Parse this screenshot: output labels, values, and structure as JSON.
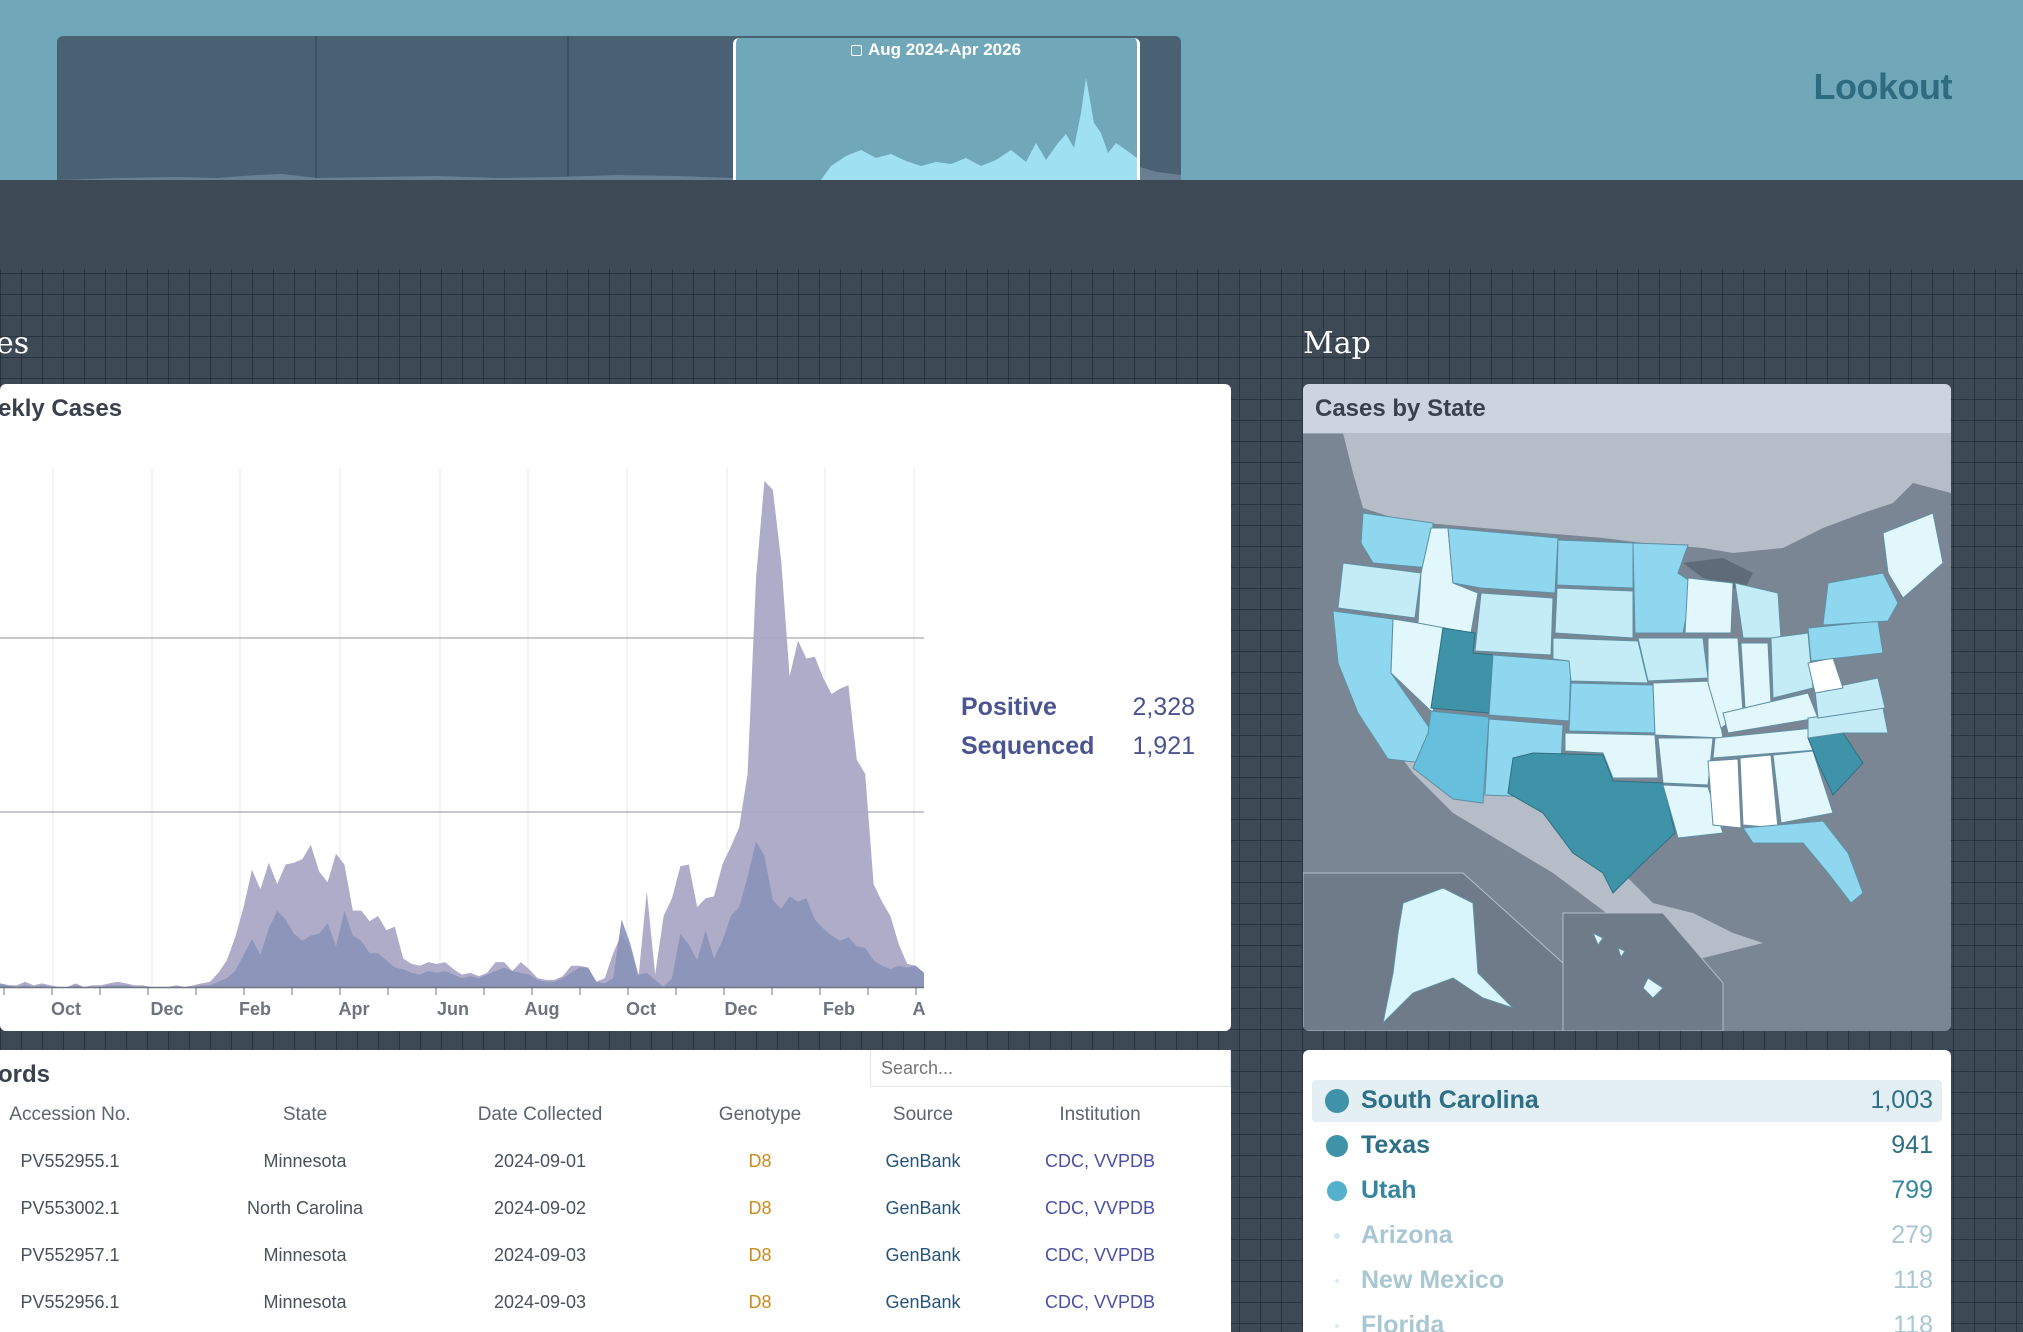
{
  "header": {
    "brand": "Lookout",
    "date_range": "Aug 2024-Apr 2026",
    "accent_color": "#71a8b9"
  },
  "sections": {
    "cases_title": "es",
    "map_title": "Map",
    "records_title": "ords"
  },
  "chart_data": {
    "type": "area",
    "title": "ekly Cases",
    "x_tick_labels": [
      "Oct",
      "Dec",
      "Feb",
      "Apr",
      "Jun",
      "Aug",
      "Oct",
      "Dec",
      "Feb",
      "A"
    ],
    "series": [
      {
        "name": "Positive",
        "color": "#aaa8c6",
        "values": [
          2,
          1,
          1,
          3,
          1,
          2,
          1,
          0,
          0,
          2,
          0,
          1,
          1,
          2,
          3,
          2,
          1,
          1,
          0,
          0,
          0,
          1,
          0,
          1,
          2,
          3,
          8,
          15,
          28,
          45,
          66,
          55,
          70,
          58,
          69,
          70,
          72,
          80,
          65,
          59,
          75,
          69,
          43,
          43,
          37,
          40,
          32,
          34,
          16,
          13,
          12,
          14,
          13,
          14,
          10,
          7,
          8,
          6,
          8,
          14,
          14,
          9,
          14,
          10,
          5,
          4,
          4,
          6,
          12,
          12,
          11,
          3,
          5,
          19,
          30,
          22,
          5,
          54,
          7,
          40,
          50,
          68,
          69,
          45,
          50,
          51,
          69,
          79,
          90,
          120,
          230,
          285,
          280,
          240,
          175,
          195,
          185,
          186,
          174,
          165,
          168,
          170,
          128,
          120,
          58,
          48,
          40,
          24,
          13,
          12,
          8
        ]
      },
      {
        "name": "Sequenced",
        "color": "#8a94b8",
        "values": [
          2,
          1,
          0,
          1,
          0,
          1,
          0,
          0,
          0,
          1,
          0,
          0,
          0,
          1,
          1,
          1,
          0,
          0,
          0,
          0,
          0,
          0,
          0,
          0,
          1,
          1,
          3,
          5,
          9,
          18,
          27,
          18,
          33,
          43,
          38,
          30,
          26,
          29,
          30,
          36,
          23,
          43,
          29,
          26,
          19,
          19,
          15,
          11,
          10,
          8,
          7,
          9,
          8,
          9,
          7,
          5,
          6,
          5,
          7,
          9,
          11,
          9,
          8,
          7,
          4,
          3,
          3,
          5,
          8,
          11,
          11,
          3,
          2,
          5,
          38,
          25,
          7,
          8,
          4,
          0,
          5,
          30,
          24,
          15,
          32,
          16,
          26,
          40,
          45,
          62,
          82,
          74,
          49,
          44,
          51,
          48,
          50,
          38,
          33,
          29,
          26,
          28,
          23,
          22,
          15,
          12,
          10,
          12,
          11,
          12,
          8
        ]
      }
    ],
    "grid": true
  },
  "chart_legend": {
    "positive_label": "Positive",
    "positive_value": "2,328",
    "sequenced_label": "Sequenced",
    "sequenced_value": "1,921"
  },
  "map": {
    "title": "Cases by State"
  },
  "records": {
    "search_placeholder": "Search...",
    "columns": [
      "Accession No.",
      "State",
      "Date Collected",
      "Genotype",
      "Source",
      "Institution"
    ],
    "rows": [
      {
        "accession": "PV552955.1",
        "state": "Minnesota",
        "date": "2024-09-01",
        "genotype": "D8",
        "source": "GenBank",
        "institution": "CDC, VVPDB"
      },
      {
        "accession": "PV553002.1",
        "state": "North Carolina",
        "date": "2024-09-02",
        "genotype": "D8",
        "source": "GenBank",
        "institution": "CDC, VVPDB"
      },
      {
        "accession": "PV552957.1",
        "state": "Minnesota",
        "date": "2024-09-03",
        "genotype": "D8",
        "source": "GenBank",
        "institution": "CDC, VVPDB"
      },
      {
        "accession": "PV552956.1",
        "state": "Minnesota",
        "date": "2024-09-03",
        "genotype": "D8",
        "source": "GenBank",
        "institution": "CDC, VVPDB"
      }
    ]
  },
  "state_list": [
    {
      "name": "South Carolina",
      "count": "1,003",
      "color": "#3e93a8"
    },
    {
      "name": "Texas",
      "count": "941",
      "color": "#3e93a8"
    },
    {
      "name": "Utah",
      "count": "799",
      "color": "#55b0cc"
    },
    {
      "name": "Arizona",
      "count": "279",
      "color": "#a9c7d2"
    },
    {
      "name": "New Mexico",
      "count": "118",
      "color": "#a9c7d2"
    },
    {
      "name": "Florida",
      "count": "118",
      "color": "#a9c7d2"
    }
  ]
}
